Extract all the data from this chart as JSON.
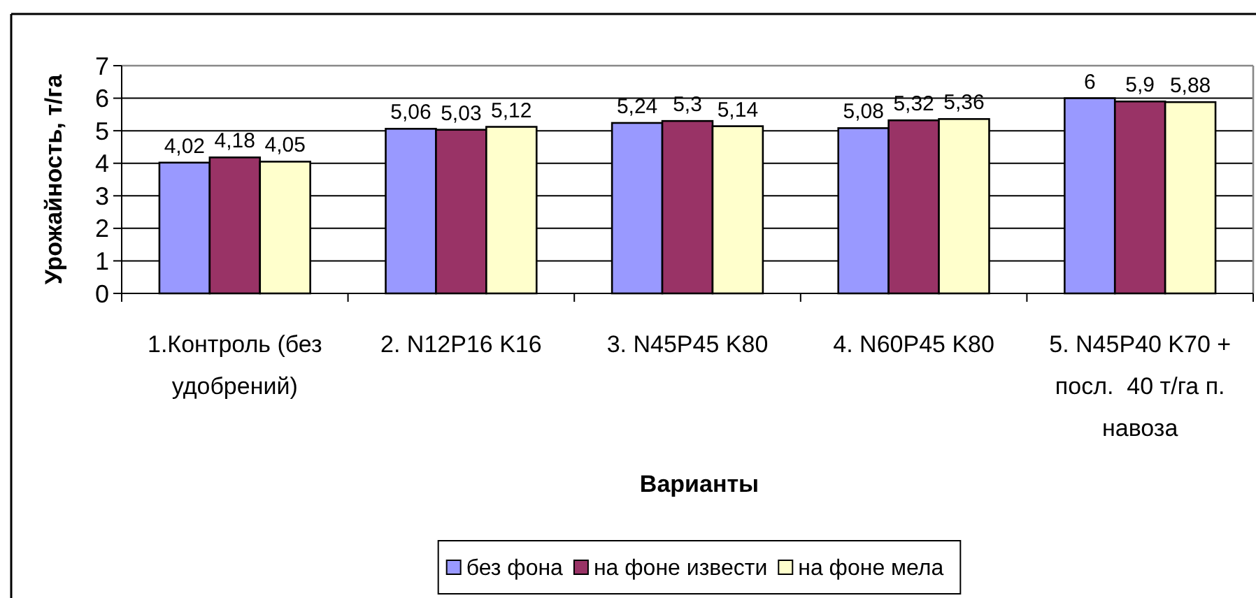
{
  "chart_data": {
    "type": "bar",
    "xlabel": "Варианты",
    "ylabel": "Урожайность, т/га",
    "categories": [
      "1.Контроль (без удобрений)",
      "2. N12P16 K16",
      "3. N45P45 K80",
      "4. N60P45 K80",
      "5. N45P40 K70 + посл.  40 т/га п. навоза"
    ],
    "series": [
      {
        "name": "без фона",
        "color": "#9999ff",
        "values": [
          4.02,
          5.06,
          5.24,
          5.08,
          6
        ],
        "value_labels": [
          "4,02",
          "5,06",
          "5,24",
          "5,08",
          "6"
        ]
      },
      {
        "name": "на фоне извести",
        "color": "#993366",
        "values": [
          4.18,
          5.03,
          5.3,
          5.32,
          5.9
        ],
        "value_labels": [
          "4,18",
          "5,03",
          "5,3",
          "5,32",
          "5,9"
        ]
      },
      {
        "name": "на фоне мела",
        "color": "#ffffcc",
        "values": [
          4.05,
          5.12,
          5.14,
          5.36,
          5.88
        ],
        "value_labels": [
          "4,05",
          "5,12",
          "5,14",
          "5,36",
          "5,88"
        ]
      }
    ],
    "ylim": [
      0,
      7
    ],
    "yticks": [
      0,
      1,
      2,
      3,
      4,
      5,
      6,
      7
    ],
    "grid": "y",
    "legend": "bottom"
  }
}
